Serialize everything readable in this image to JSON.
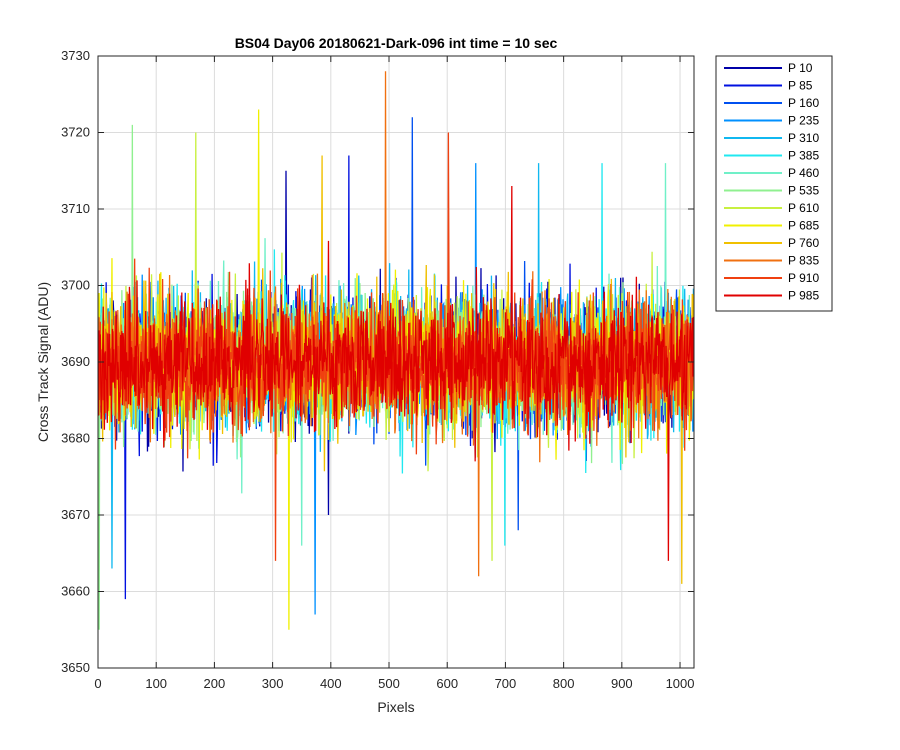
{
  "chart_data": {
    "type": "line",
    "title": "BS04 Day06 20180621-Dark-096 int time = 10 sec",
    "xlabel": "Pixels",
    "ylabel": "Cross Track Signal (ADU)",
    "xlim": [
      0,
      1024
    ],
    "ylim": [
      3650,
      3730
    ],
    "xticks": [
      "0",
      "100",
      "200",
      "300",
      "400",
      "500",
      "600",
      "700",
      "800",
      "900",
      "1000"
    ],
    "yticks": [
      "3650",
      "3660",
      "3670",
      "3680",
      "3690",
      "3700",
      "3710",
      "3720",
      "3730"
    ],
    "grid": true,
    "legend_position": "outside-top-right",
    "n_points": 1024,
    "mean_level": 3690,
    "noise_spread": 9,
    "series": [
      {
        "name": "P 10",
        "color": "#0000a8",
        "max": 3715,
        "min": 3670
      },
      {
        "name": "P 85",
        "color": "#0010e0",
        "max": 3717,
        "min": 3659
      },
      {
        "name": "P 160",
        "color": "#0050f0",
        "max": 3722,
        "min": 3668
      },
      {
        "name": "P 235",
        "color": "#0090ff",
        "max": 3716,
        "min": 3657
      },
      {
        "name": "P 310",
        "color": "#10b8f0",
        "max": 3716,
        "min": 3663
      },
      {
        "name": "P 385",
        "color": "#20e8f0",
        "max": 3716,
        "min": 3666
      },
      {
        "name": "P 460",
        "color": "#70f0c8",
        "max": 3716,
        "min": 3666
      },
      {
        "name": "P 535",
        "color": "#90f090",
        "max": 3721,
        "min": 3655
      },
      {
        "name": "P 610",
        "color": "#c8f040",
        "max": 3720,
        "min": 3664
      },
      {
        "name": "P 685",
        "color": "#f0f000",
        "max": 3723,
        "min": 3655
      },
      {
        "name": "P 760",
        "color": "#f0c000",
        "max": 3717,
        "min": 3661
      },
      {
        "name": "P 835",
        "color": "#f07010",
        "max": 3728,
        "min": 3662
      },
      {
        "name": "P 910",
        "color": "#f04010",
        "max": 3720,
        "min": 3664
      },
      {
        "name": "P 985",
        "color": "#e00000",
        "max": 3713,
        "min": 3664
      }
    ]
  }
}
